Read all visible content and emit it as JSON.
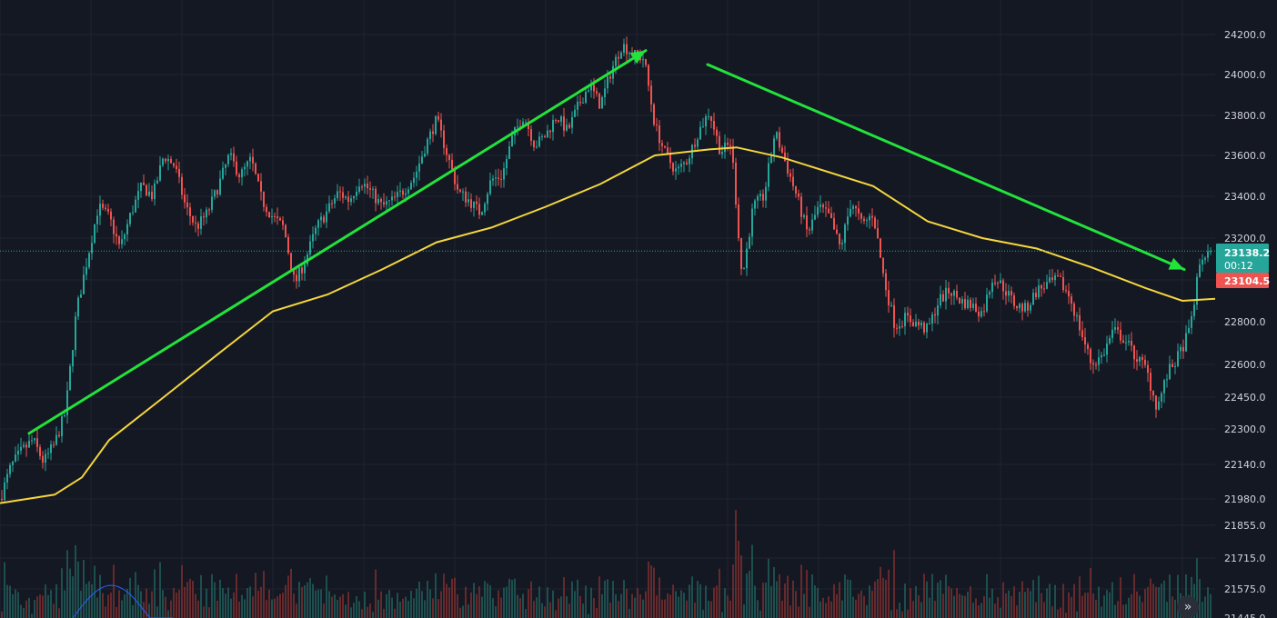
{
  "chart_data": {
    "type": "candlestick",
    "title": "",
    "price_axis": {
      "ticks": [
        24200.0,
        24000.0,
        23800.0,
        23600.0,
        23400.0,
        23200.0,
        22800.0,
        22600.0,
        22450.0,
        22300.0,
        22140.0,
        21980.0,
        21855.0,
        21715.0,
        21575.0
      ],
      "tick_labels": [
        "24200.0",
        "24000.0",
        "23800.0",
        "23600.0",
        "23400.0",
        "23200.0",
        "22800.0",
        "22600.0",
        "22450.0",
        "22300.0",
        "22140.0",
        "21980.0",
        "21855.0",
        "21715.0",
        "21575.0"
      ],
      "partial_bottom_label": "21445.0",
      "scale": "logarithmic-style (non-uniform)"
    },
    "current_price": {
      "value": "23138.2",
      "countdown": "00:12",
      "color": "#26a69a"
    },
    "reference_price": {
      "value": "23104.5",
      "color": "#ef5350"
    },
    "price_path": [
      [
        0,
        21980
      ],
      [
        12,
        22130
      ],
      [
        24,
        22200
      ],
      [
        36,
        22250
      ],
      [
        48,
        22150
      ],
      [
        60,
        22230
      ],
      [
        72,
        22380
      ],
      [
        84,
        22850
      ],
      [
        96,
        23100
      ],
      [
        108,
        23350
      ],
      [
        120,
        23300
      ],
      [
        132,
        23150
      ],
      [
        144,
        23320
      ],
      [
        156,
        23450
      ],
      [
        168,
        23400
      ],
      [
        180,
        23600
      ],
      [
        192,
        23550
      ],
      [
        204,
        23350
      ],
      [
        216,
        23250
      ],
      [
        228,
        23320
      ],
      [
        240,
        23450
      ],
      [
        252,
        23600
      ],
      [
        264,
        23500
      ],
      [
        276,
        23580
      ],
      [
        288,
        23380
      ],
      [
        300,
        23300
      ],
      [
        312,
        23250
      ],
      [
        324,
        22980
      ],
      [
        336,
        23100
      ],
      [
        348,
        23250
      ],
      [
        360,
        23330
      ],
      [
        372,
        23420
      ],
      [
        384,
        23380
      ],
      [
        396,
        23480
      ],
      [
        408,
        23420
      ],
      [
        420,
        23350
      ],
      [
        432,
        23380
      ],
      [
        444,
        23430
      ],
      [
        456,
        23500
      ],
      [
        468,
        23650
      ],
      [
        480,
        23780
      ],
      [
        492,
        23600
      ],
      [
        504,
        23420
      ],
      [
        516,
        23380
      ],
      [
        528,
        23320
      ],
      [
        540,
        23480
      ],
      [
        552,
        23500
      ],
      [
        564,
        23700
      ],
      [
        576,
        23800
      ],
      [
        588,
        23650
      ],
      [
        600,
        23700
      ],
      [
        612,
        23800
      ],
      [
        624,
        23720
      ],
      [
        636,
        23850
      ],
      [
        648,
        23950
      ],
      [
        660,
        23850
      ],
      [
        672,
        24020
      ],
      [
        684,
        24150
      ],
      [
        696,
        24100
      ],
      [
        708,
        24080
      ],
      [
        720,
        23750
      ],
      [
        732,
        23600
      ],
      [
        744,
        23520
      ],
      [
        756,
        23580
      ],
      [
        768,
        23720
      ],
      [
        780,
        23820
      ],
      [
        792,
        23620
      ],
      [
        804,
        23660
      ],
      [
        816,
        23000
      ],
      [
        828,
        23350
      ],
      [
        840,
        23400
      ],
      [
        852,
        23720
      ],
      [
        864,
        23560
      ],
      [
        876,
        23400
      ],
      [
        888,
        23220
      ],
      [
        900,
        23350
      ],
      [
        912,
        23300
      ],
      [
        924,
        23150
      ],
      [
        936,
        23380
      ],
      [
        948,
        23260
      ],
      [
        960,
        23320
      ],
      [
        972,
        23000
      ],
      [
        984,
        22780
      ],
      [
        996,
        22820
      ],
      [
        1008,
        22790
      ],
      [
        1020,
        22760
      ],
      [
        1032,
        22900
      ],
      [
        1044,
        22950
      ],
      [
        1056,
        22900
      ],
      [
        1068,
        22880
      ],
      [
        1080,
        22840
      ],
      [
        1092,
        23020
      ],
      [
        1104,
        22960
      ],
      [
        1116,
        22880
      ],
      [
        1128,
        22860
      ],
      [
        1140,
        22950
      ],
      [
        1152,
        22980
      ],
      [
        1164,
        23000
      ],
      [
        1176,
        22920
      ],
      [
        1188,
        22760
      ],
      [
        1200,
        22600
      ],
      [
        1212,
        22640
      ],
      [
        1224,
        22760
      ],
      [
        1236,
        22720
      ],
      [
        1248,
        22640
      ],
      [
        1260,
        22580
      ],
      [
        1272,
        22400
      ],
      [
        1284,
        22560
      ],
      [
        1296,
        22640
      ],
      [
        1308,
        22760
      ],
      [
        1320,
        23100
      ],
      [
        1332,
        23138.2
      ]
    ],
    "moving_average": [
      [
        0,
        21960
      ],
      [
        60,
        22000
      ],
      [
        90,
        22080
      ],
      [
        120,
        22250
      ],
      [
        180,
        22450
      ],
      [
        240,
        22650
      ],
      [
        300,
        22850
      ],
      [
        360,
        22930
      ],
      [
        420,
        23050
      ],
      [
        480,
        23180
      ],
      [
        540,
        23250
      ],
      [
        600,
        23350
      ],
      [
        660,
        23460
      ],
      [
        720,
        23600
      ],
      [
        780,
        23630
      ],
      [
        810,
        23640
      ],
      [
        860,
        23590
      ],
      [
        960,
        23450
      ],
      [
        1020,
        23280
      ],
      [
        1080,
        23200
      ],
      [
        1140,
        23150
      ],
      [
        1200,
        23060
      ],
      [
        1260,
        22960
      ],
      [
        1300,
        22900
      ],
      [
        1336,
        22910
      ]
    ],
    "moving_average_color": "#f5d63d",
    "volume_ma_color": "#2962ff",
    "bull_color": "#26a69a",
    "bear_color": "#ef5350",
    "trend_arrows": [
      {
        "name": "uptrend-arrow",
        "from": [
          32,
          22280
        ],
        "to": [
          710,
          24120
        ],
        "color": "#22e23b"
      },
      {
        "name": "downtrend-arrow",
        "from": [
          778,
          24050
        ],
        "to": [
          1302,
          23050
        ],
        "color": "#22e23b"
      }
    ]
  },
  "ui": {
    "scroll_button_glyph": "»"
  },
  "colors": {
    "background": "#141823",
    "grid": "#1f2330",
    "price_line": "#26a69a"
  }
}
